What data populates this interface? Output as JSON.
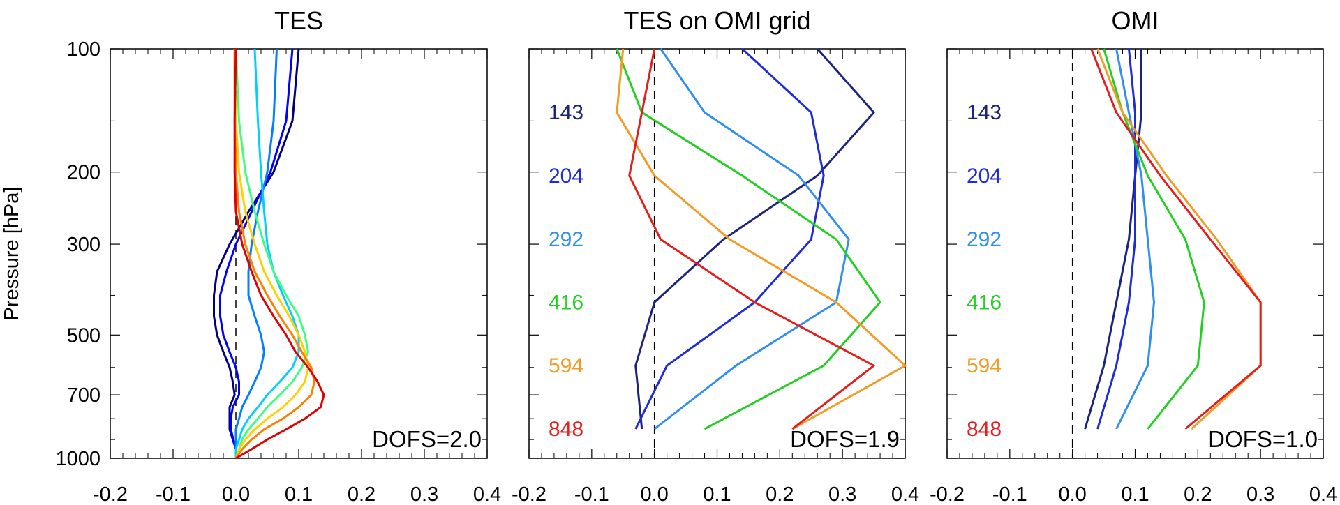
{
  "chart_data": [
    {
      "type": "line",
      "title": "TES",
      "ylabel": "Pressure [hPa]",
      "xlabel": "",
      "xlim": [
        -0.2,
        0.4
      ],
      "ylim": [
        1000,
        100
      ],
      "y_scale": "log",
      "x_ticks": [
        "-0.2",
        "-0.1",
        "0.0",
        "0.1",
        "0.2",
        "0.3",
        "0.4"
      ],
      "y_ticks": [
        "100",
        "200",
        "300",
        "500",
        "700",
        "1000"
      ],
      "y_tick_values": [
        100,
        200,
        300,
        500,
        700,
        1000
      ],
      "annotation": "DOFS=2.0",
      "reference_line": "dashed vertical at x=0",
      "grid": false,
      "legend": "none",
      "colormap": "rainbow",
      "pressure": [
        100,
        150,
        200,
        250,
        300,
        350,
        400,
        450,
        500,
        550,
        600,
        650,
        700,
        750,
        800,
        850,
        900,
        950,
        1000
      ],
      "series": [
        {
          "color": "#000080",
          "values": [
            0.1,
            0.09,
            0.06,
            0.02,
            -0.01,
            -0.03,
            -0.035,
            -0.035,
            -0.03,
            -0.02,
            -0.01,
            -0.005,
            -0.002,
            -0.01,
            -0.01,
            -0.01,
            -0.005,
            0.0,
            0.0
          ]
        },
        {
          "color": "#0000ff",
          "values": [
            0.09,
            0.08,
            0.055,
            0.025,
            0.0,
            -0.015,
            -0.025,
            -0.025,
            -0.02,
            -0.01,
            0.0,
            0.005,
            0.005,
            -0.005,
            -0.008,
            -0.008,
            -0.004,
            0.0,
            0.0
          ]
        },
        {
          "color": "#0080ff",
          "values": [
            0.065,
            0.06,
            0.05,
            0.035,
            0.025,
            0.02,
            0.02,
            0.03,
            0.04,
            0.045,
            0.04,
            0.03,
            0.02,
            0.01,
            0.005,
            0.0,
            0.0,
            0.0,
            0.0
          ]
        },
        {
          "color": "#00d0ff",
          "values": [
            0.03,
            0.035,
            0.04,
            0.045,
            0.05,
            0.06,
            0.075,
            0.09,
            0.1,
            0.1,
            0.09,
            0.07,
            0.05,
            0.035,
            0.02,
            0.01,
            0.005,
            0.0,
            0.0
          ]
        },
        {
          "color": "#40ff80",
          "values": [
            0.0,
            0.005,
            0.015,
            0.03,
            0.045,
            0.06,
            0.08,
            0.1,
            0.11,
            0.115,
            0.105,
            0.09,
            0.07,
            0.05,
            0.035,
            0.02,
            0.01,
            0.005,
            0.0
          ]
        },
        {
          "color": "#ffd000",
          "values": [
            -0.002,
            0.0,
            0.005,
            0.015,
            0.03,
            0.045,
            0.065,
            0.085,
            0.1,
            0.11,
            0.115,
            0.11,
            0.095,
            0.075,
            0.05,
            0.03,
            0.015,
            0.005,
            0.0
          ]
        },
        {
          "color": "#ff8000",
          "values": [
            -0.002,
            -0.002,
            0.0,
            0.005,
            0.015,
            0.03,
            0.05,
            0.07,
            0.09,
            0.105,
            0.12,
            0.125,
            0.12,
            0.1,
            0.075,
            0.045,
            0.025,
            0.01,
            0.0
          ]
        },
        {
          "color": "#e00000",
          "values": [
            0.0,
            -0.002,
            -0.002,
            0.0,
            0.01,
            0.025,
            0.04,
            0.06,
            0.08,
            0.095,
            0.115,
            0.13,
            0.14,
            0.135,
            0.11,
            0.08,
            0.05,
            0.025,
            0.0
          ]
        }
      ]
    },
    {
      "type": "line",
      "title": "TES on OMI grid",
      "xlabel": "",
      "ylabel": "",
      "xlim": [
        -0.2,
        0.4
      ],
      "ylim": [
        1000,
        100
      ],
      "y_scale": "log",
      "x_ticks": [
        "-0.2",
        "-0.1",
        "0.0",
        "0.1",
        "0.2",
        "0.3",
        "0.4"
      ],
      "annotation": "DOFS=1.9",
      "reference_line": "dashed vertical at x=0",
      "grid": false,
      "legend": "labels inside plot",
      "labels": [
        {
          "text": "143",
          "color": "#1a237e",
          "pressure": 143
        },
        {
          "text": "204",
          "color": "#1e2bd8",
          "pressure": 204
        },
        {
          "text": "292",
          "color": "#2f8ff0",
          "pressure": 292
        },
        {
          "text": "416",
          "color": "#22d022",
          "pressure": 416
        },
        {
          "text": "594",
          "color": "#f59a23",
          "pressure": 594
        },
        {
          "text": "848",
          "color": "#e61d1d",
          "pressure": 848
        }
      ],
      "series": [
        {
          "name": "143",
          "color": "#1a237e",
          "x": [
            0.26,
            0.35,
            0.26,
            0.11,
            0.0,
            -0.03,
            -0.02
          ],
          "y": [
            100,
            143,
            204,
            292,
            416,
            594,
            848
          ]
        },
        {
          "name": "204",
          "color": "#1e2bd8",
          "x": [
            0.14,
            0.25,
            0.27,
            0.25,
            0.16,
            0.02,
            -0.03
          ],
          "y": [
            100,
            143,
            204,
            292,
            416,
            594,
            848
          ]
        },
        {
          "name": "292",
          "color": "#2f8ff0",
          "x": [
            0.01,
            0.08,
            0.23,
            0.31,
            0.29,
            0.13,
            0.0
          ],
          "y": [
            100,
            143,
            204,
            292,
            416,
            594,
            848
          ]
        },
        {
          "name": "416",
          "color": "#22d022",
          "x": [
            -0.06,
            -0.02,
            0.14,
            0.29,
            0.36,
            0.27,
            0.08
          ],
          "y": [
            100,
            143,
            204,
            292,
            416,
            594,
            848
          ]
        },
        {
          "name": "594",
          "color": "#f59a23",
          "x": [
            -0.05,
            -0.06,
            0.0,
            0.12,
            0.29,
            0.4,
            0.22
          ],
          "y": [
            100,
            143,
            204,
            292,
            416,
            594,
            848
          ]
        },
        {
          "name": "848",
          "color": "#e61d1d",
          "x": [
            0.0,
            -0.02,
            -0.04,
            0.01,
            0.16,
            0.35,
            0.22
          ],
          "y": [
            100,
            143,
            204,
            292,
            416,
            594,
            848
          ]
        }
      ]
    },
    {
      "type": "line",
      "title": "OMI",
      "xlabel": "",
      "ylabel": "",
      "xlim": [
        -0.2,
        0.4
      ],
      "ylim": [
        1000,
        100
      ],
      "y_scale": "log",
      "x_ticks": [
        "-0.2",
        "-0.1",
        "0.0",
        "0.1",
        "0.2",
        "0.3",
        "0.4"
      ],
      "annotation": "DOFS=1.0",
      "reference_line": "dashed vertical at x=0",
      "grid": false,
      "legend": "labels inside plot",
      "labels": [
        {
          "text": "143",
          "color": "#1a237e",
          "pressure": 143
        },
        {
          "text": "204",
          "color": "#1e2bd8",
          "pressure": 204
        },
        {
          "text": "292",
          "color": "#2f8ff0",
          "pressure": 292
        },
        {
          "text": "416",
          "color": "#22d022",
          "pressure": 416
        },
        {
          "text": "594",
          "color": "#f59a23",
          "pressure": 594
        },
        {
          "text": "848",
          "color": "#e61d1d",
          "pressure": 848
        }
      ],
      "series": [
        {
          "name": "143",
          "color": "#1a237e",
          "x": [
            0.11,
            0.11,
            0.1,
            0.09,
            0.07,
            0.05,
            0.02
          ],
          "y": [
            100,
            143,
            204,
            292,
            416,
            594,
            848
          ]
        },
        {
          "name": "204",
          "color": "#1e2bd8",
          "x": [
            0.09,
            0.1,
            0.1,
            0.1,
            0.09,
            0.07,
            0.04
          ],
          "y": [
            100,
            143,
            204,
            292,
            416,
            594,
            848
          ]
        },
        {
          "name": "292",
          "color": "#2f8ff0",
          "x": [
            0.07,
            0.09,
            0.11,
            0.12,
            0.13,
            0.12,
            0.07
          ],
          "y": [
            100,
            143,
            204,
            292,
            416,
            594,
            848
          ]
        },
        {
          "name": "416",
          "color": "#22d022",
          "x": [
            0.05,
            0.08,
            0.12,
            0.18,
            0.21,
            0.2,
            0.12
          ],
          "y": [
            100,
            143,
            204,
            292,
            416,
            594,
            848
          ]
        },
        {
          "name": "594",
          "color": "#f59a23",
          "x": [
            0.04,
            0.08,
            0.15,
            0.23,
            0.3,
            0.3,
            0.19
          ],
          "y": [
            100,
            143,
            204,
            292,
            416,
            594,
            848
          ]
        },
        {
          "name": "848",
          "color": "#e61d1d",
          "x": [
            0.03,
            0.07,
            0.14,
            0.22,
            0.3,
            0.3,
            0.18
          ],
          "y": [
            100,
            143,
            204,
            292,
            416,
            594,
            848
          ]
        }
      ]
    }
  ]
}
